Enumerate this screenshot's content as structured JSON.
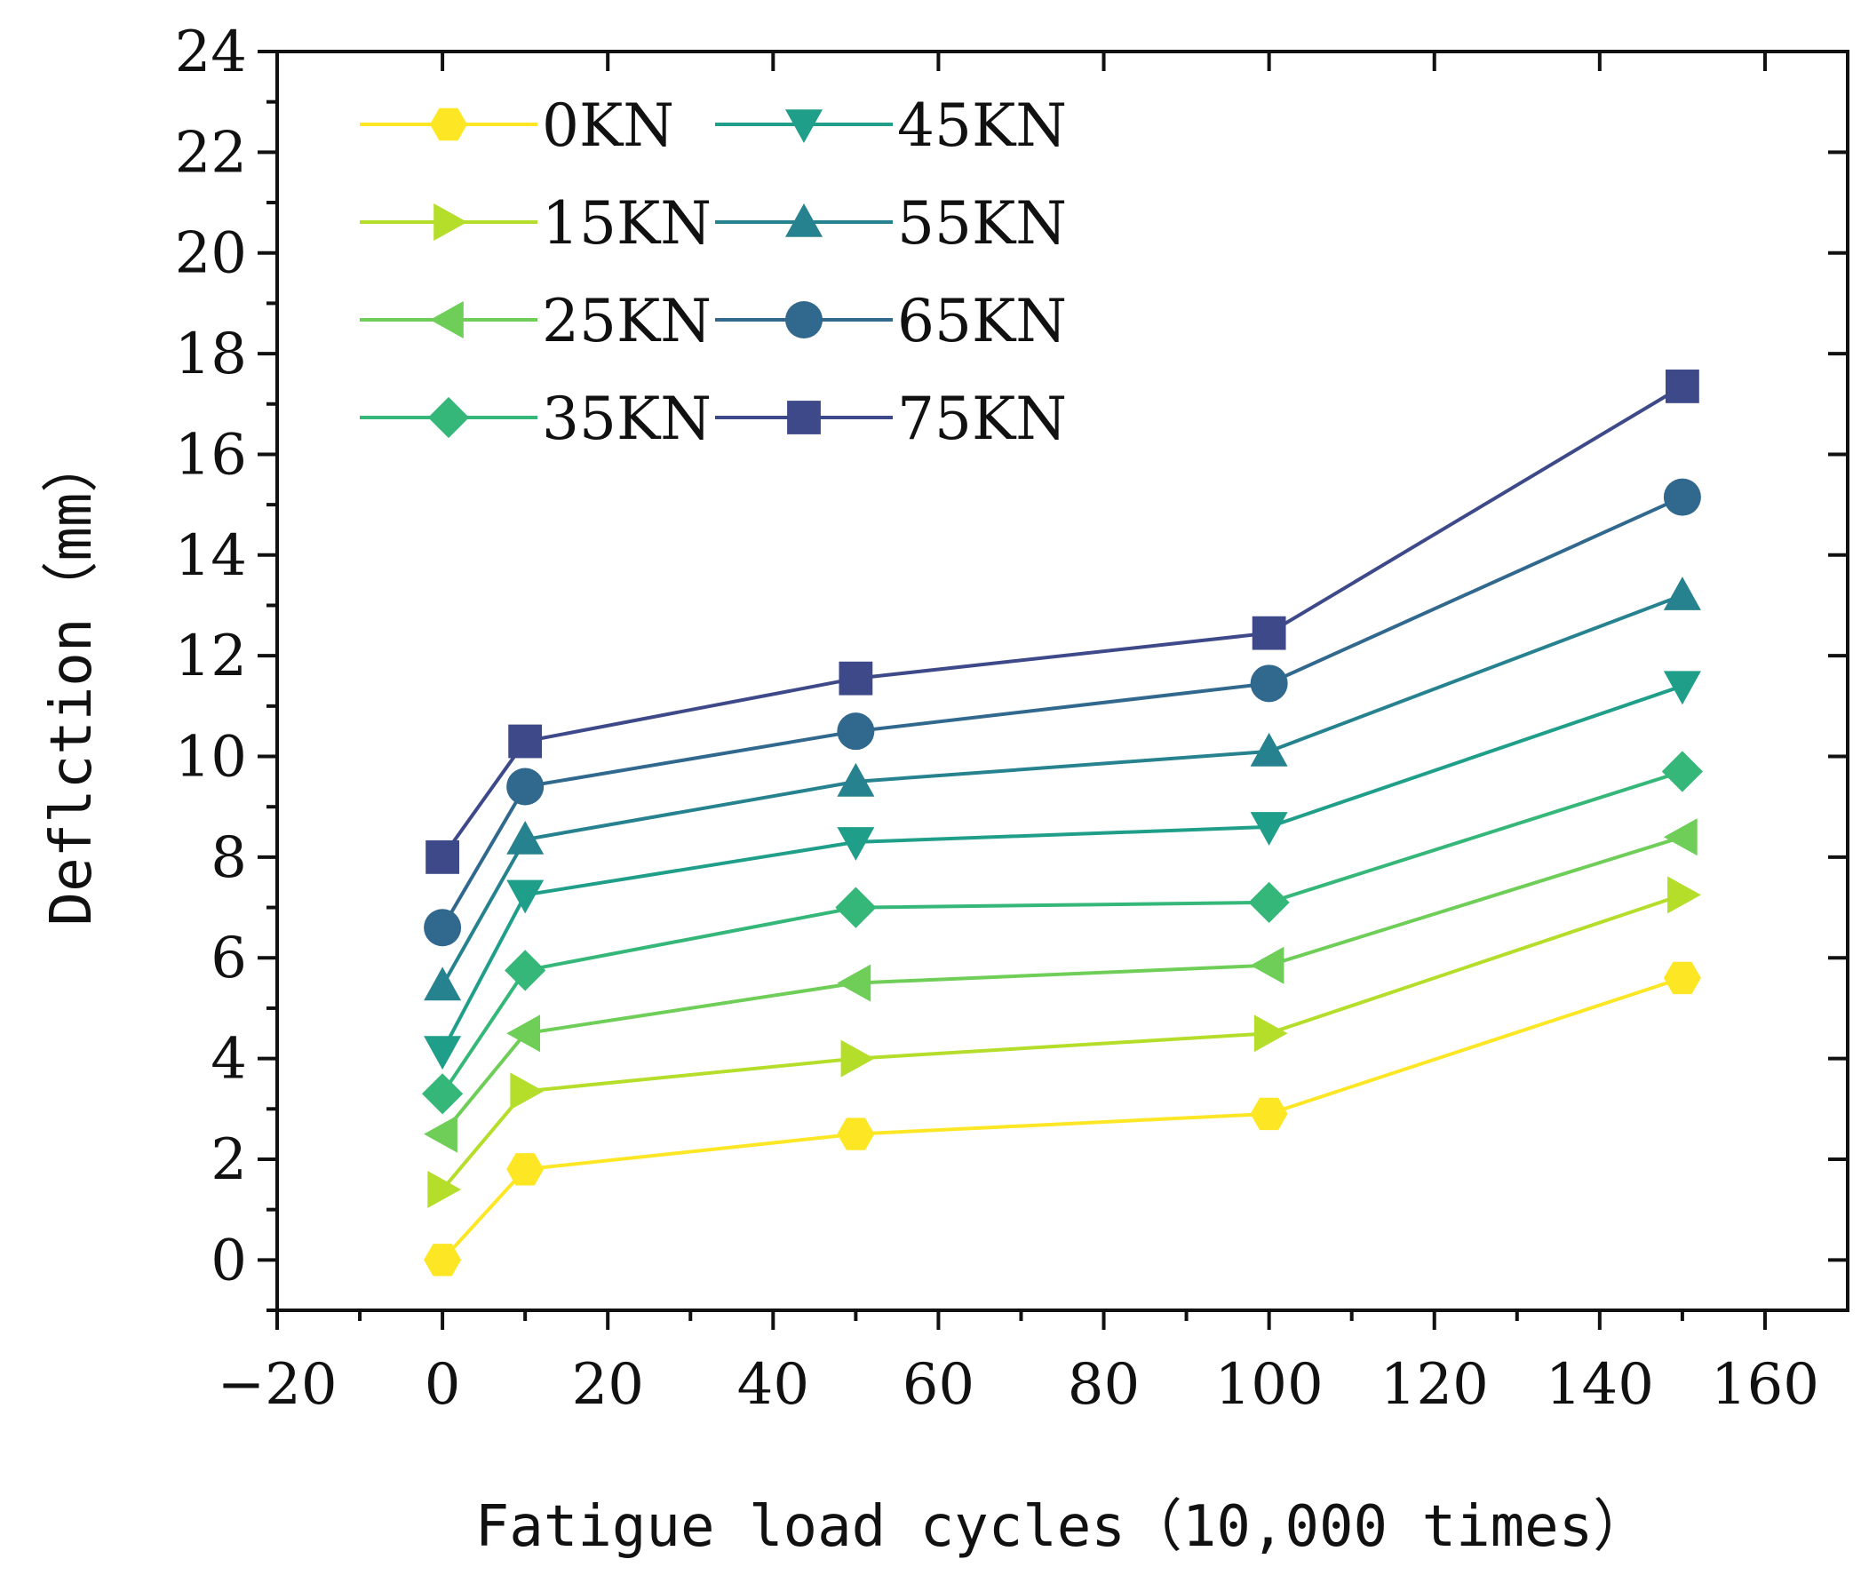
{
  "chart_data": {
    "type": "line",
    "title": "",
    "xlabel": "Fatigue load cycles（10,000 times）",
    "ylabel": "Deflction（mm）",
    "xlim": [
      -20,
      170
    ],
    "ylim": [
      -1,
      24
    ],
    "x_ticks": [
      -20,
      0,
      20,
      40,
      60,
      80,
      100,
      120,
      140,
      160
    ],
    "x_tick_labels": [
      "−20",
      "0",
      "20",
      "40",
      "60",
      "80",
      "100",
      "120",
      "140",
      "160"
    ],
    "y_ticks": [
      0,
      2,
      4,
      6,
      8,
      10,
      12,
      14,
      16,
      18,
      20,
      22,
      24
    ],
    "y_tick_labels": [
      "0",
      "2",
      "4",
      "6",
      "8",
      "10",
      "12",
      "14",
      "16",
      "18",
      "20",
      "22",
      "24"
    ],
    "grid": false,
    "legend_position": "top-left",
    "x": [
      0,
      10,
      50,
      100,
      150
    ],
    "series": [
      {
        "name": "0KN",
        "color": "#fde725",
        "marker": "hexagon",
        "values": [
          0.0,
          1.8,
          2.5,
          2.9,
          5.6
        ]
      },
      {
        "name": "15KN",
        "color": "#b5de2b",
        "marker": "triangle-right",
        "values": [
          1.4,
          3.35,
          4.0,
          4.5,
          7.25
        ]
      },
      {
        "name": "25KN",
        "color": "#6ece58",
        "marker": "triangle-left",
        "values": [
          2.5,
          4.5,
          5.5,
          5.85,
          8.4
        ]
      },
      {
        "name": "35KN",
        "color": "#35b779",
        "marker": "diamond",
        "values": [
          3.3,
          5.75,
          7.0,
          7.1,
          9.7
        ]
      },
      {
        "name": "45KN",
        "color": "#1f9e89",
        "marker": "triangle-down",
        "values": [
          4.15,
          7.25,
          8.3,
          8.6,
          11.4
        ]
      },
      {
        "name": "55KN",
        "color": "#26828e",
        "marker": "triangle-up",
        "values": [
          5.45,
          8.35,
          9.5,
          10.1,
          13.2
        ]
      },
      {
        "name": "65KN",
        "color": "#31688e",
        "marker": "circle",
        "values": [
          6.6,
          9.4,
          10.5,
          11.45,
          15.15
        ]
      },
      {
        "name": "75KN",
        "color": "#3e4989",
        "marker": "square",
        "values": [
          8.0,
          10.3,
          11.55,
          12.45,
          17.35
        ]
      }
    ]
  }
}
